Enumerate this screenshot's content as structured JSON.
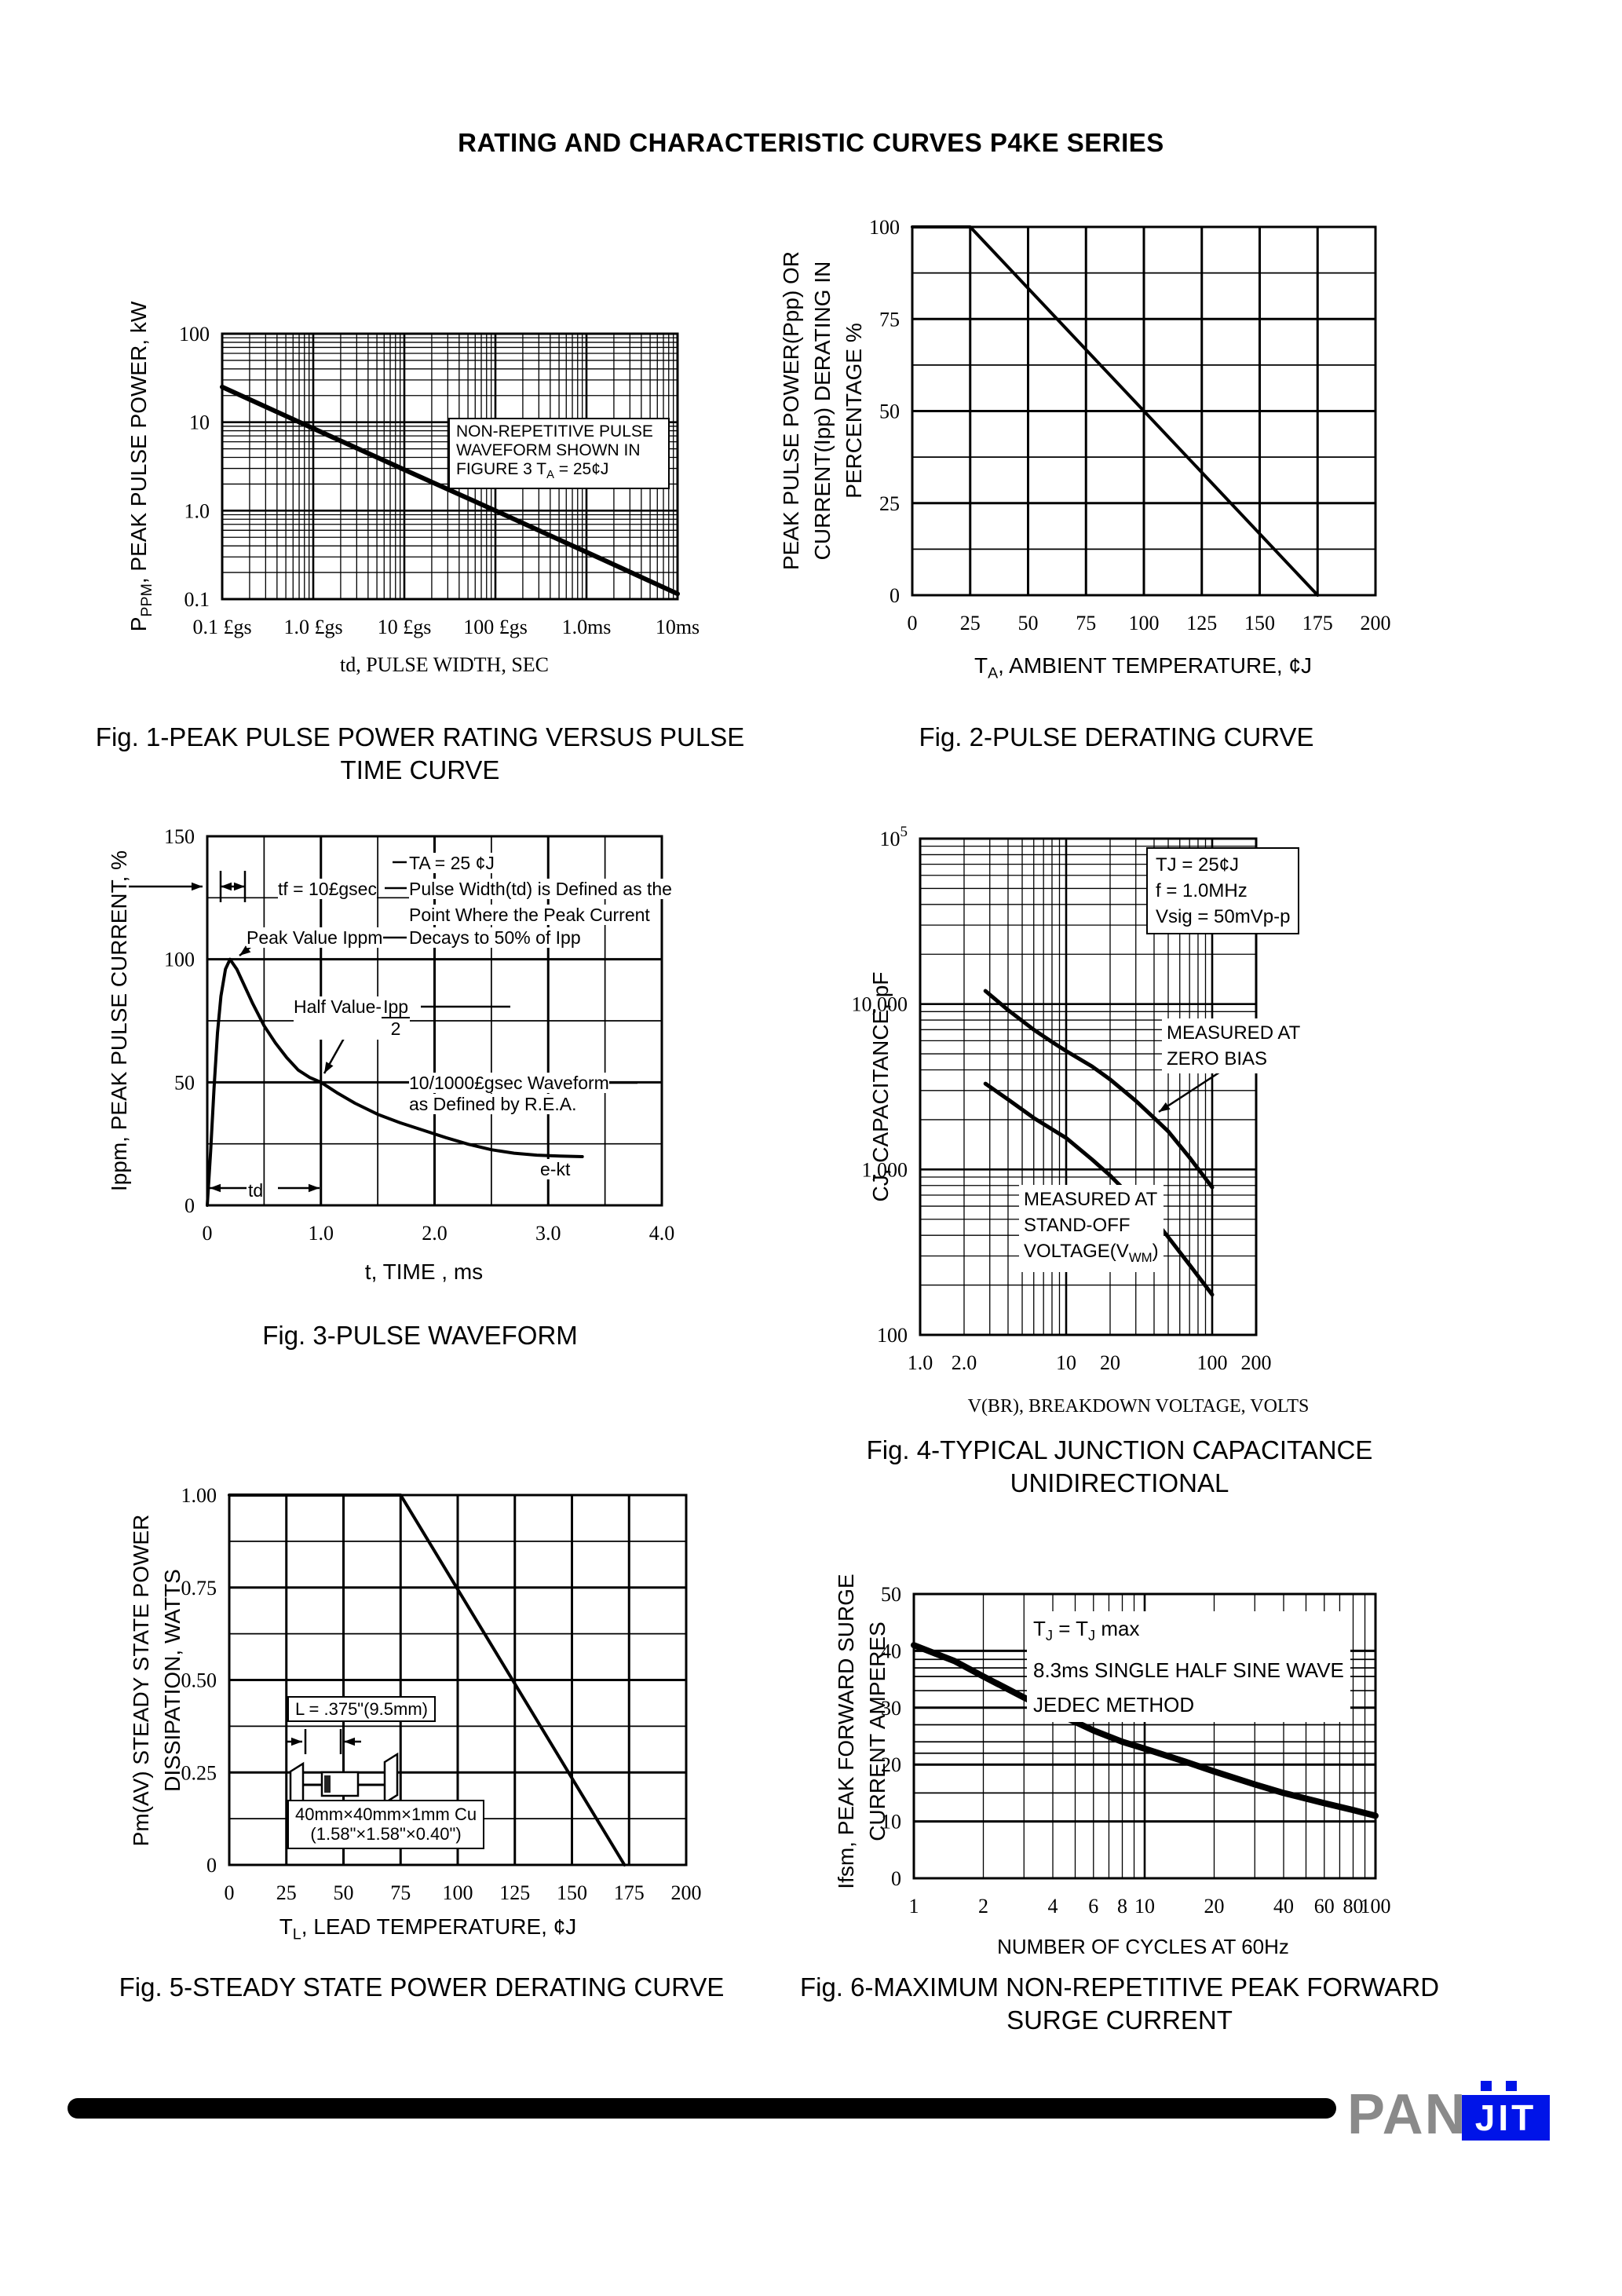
{
  "page": {
    "title": "RATING AND CHARACTERISTIC CURVES P4KE SERIES",
    "footer": {
      "brand_gray": "PAN",
      "brand_blue": "JIT"
    },
    "colors": {
      "accent_blue": "#0014e8",
      "logo_gray": "#8a8a8a",
      "ink": "#000000"
    }
  },
  "figures": {
    "fig1": {
      "caption1": "Fig. 1-PEAK PULSE POWER RATING VERSUS PULSE",
      "caption2": "TIME CURVE",
      "xlabel": "td, PULSE WIDTH, SEC",
      "ylabel_p0": "P",
      "ylabel_s0": "PPM",
      "ylabel_p1": ", PEAK PULSE POWER, kW",
      "note1": "NON-REPETITIVE PULSE",
      "note2": "WAVEFORM SHOWN IN",
      "note3_p0": "FIGURE 3 T",
      "note3_s0": "A",
      "note3_p1": " = 25¢J"
    },
    "fig2": {
      "caption": "Fig. 2-PULSE DERATING CURVE",
      "xlabel_p0": "T",
      "xlabel_s0": "A",
      "xlabel_p1": ", AMBIENT TEMPERATURE, ¢J",
      "ylabel_l1": "PEAK PULSE POWER(Ppp) OR",
      "ylabel_l2": "CURRENT(Ipp) DERATING IN",
      "ylabel_l3": "PERCENTAGE %"
    },
    "fig3": {
      "caption": "Fig. 3-PULSE WAVEFORM",
      "xlabel": "t, TIME , ms",
      "ylabel": "Ippm, PEAK PULSE CURRENT, %",
      "ann_ta": "TA = 25 ¢J",
      "ann_tf": "tf = 10£gsec",
      "ann_pw1": "Pulse Width(td) is Defined as the",
      "ann_pw2": "Point Where the Peak Current",
      "ann_pw3": "Decays to 50% of Ipp",
      "ann_peak": "Peak Value Ippm",
      "ann_half_pre": "Half Value-",
      "ann_half_num": "Ipp",
      "ann_half_den": "2",
      "ann_wave1": "10/1000£gsec Waveform",
      "ann_wave2": "as Defined by R.E.A.",
      "ann_ekt": "e-kt",
      "ann_td": "td"
    },
    "fig4": {
      "caption1": "Fig. 4-TYPICAL JUNCTION CAPACITANCE",
      "caption2": "UNIDIRECTIONAL",
      "xlabel": "V(BR), BREAKDOWN VOLTAGE, VOLTS",
      "ylabel": "CJ, CAPACITANCE, pF",
      "note1": "TJ = 25¢J",
      "note2": "f = 1.0MHz",
      "note3": "Vsig = 50mVp-p",
      "zb1": "MEASURED AT",
      "zb2": "ZERO BIAS",
      "so1": "MEASURED AT",
      "so2": "STAND-OFF",
      "so3_p0": "VOLTAGE(V",
      "so3_s0": "WM",
      "so3_p1": ")"
    },
    "fig5": {
      "caption": "Fig. 5-STEADY STATE POWER DERATING CURVE",
      "xlabel_p0": "T",
      "xlabel_s0": "L",
      "xlabel_p1": ", LEAD TEMPERATURE, ¢J",
      "ylabel_l1": "Pm(AV) STEADY STATE POWER",
      "ylabel_l2": "DISSIPATION, WATTS",
      "ins_l": "L = .375\"(9.5mm)",
      "ins_cu": "40mm×40mm×1mm Cu",
      "ins_in": "(1.58\"×1.58\"×0.40\")"
    },
    "fig6": {
      "caption1": "Fig. 6-MAXIMUM NON-REPETITIVE PEAK FORWARD",
      "caption2": "SURGE CURRENT",
      "xlabel": "NUMBER OF CYCLES AT 60Hz",
      "ylabel_l1": "Ifsm, PEAK FORWARD SURGE",
      "ylabel_l2": "CURRENT AMPERES",
      "ann1_p0": "T",
      "ann1_s0": "J",
      "ann1_p1": " = T",
      "ann1_s1": "J",
      "ann1_p2": " max",
      "ann2": "8.3ms SINGLE HALF SINE WAVE",
      "ann3": "JEDEC METHOD"
    }
  },
  "chart_data": [
    {
      "id": "fig1",
      "type": "line",
      "title": "Fig. 1-PEAK PULSE POWER RATING VERSUS PULSE TIME CURVE",
      "x_axis": {
        "type": "log",
        "min": 1e-07,
        "max": 0.01,
        "label": "td, PULSE WIDTH, SEC",
        "ticks": [
          [
            1e-07,
            "0.1 £gs"
          ],
          [
            1e-06,
            "1.0 £gs"
          ],
          [
            1e-05,
            "10 £gs"
          ],
          [
            0.0001,
            "100 £gs"
          ],
          [
            0.001,
            "1.0ms"
          ],
          [
            0.01,
            "10ms"
          ]
        ]
      },
      "y_axis": {
        "type": "log",
        "min": 0.1,
        "max": 100,
        "label": "PPPM, PEAK PULSE POWER, kW",
        "ticks": [
          [
            100,
            "100"
          ],
          [
            10,
            "10"
          ],
          [
            1,
            "1.0"
          ],
          [
            0.1,
            "0.1"
          ]
        ]
      },
      "series": [
        {
          "name": "non-repetitive peak pulse power",
          "width": 6,
          "points": [
            [
              1e-07,
              25
            ],
            [
              1e-06,
              8.5
            ],
            [
              1e-05,
              2.9
            ],
            [
              0.0001,
              1.0
            ],
            [
              0.001,
              0.34
            ],
            [
              0.01,
              0.115
            ]
          ]
        }
      ]
    },
    {
      "id": "fig2",
      "type": "line",
      "title": "Fig. 2-PULSE DERATING CURVE",
      "x_axis": {
        "type": "linear",
        "min": 0,
        "max": 200,
        "grid_step": 25,
        "thick_step": 25,
        "label": "TA, AMBIENT TEMPERATURE, ¢J",
        "ticks": [
          [
            0,
            "0"
          ],
          [
            25,
            "25"
          ],
          [
            50,
            "50"
          ],
          [
            75,
            "75"
          ],
          [
            100,
            "100"
          ],
          [
            125,
            "125"
          ],
          [
            150,
            "150"
          ],
          [
            175,
            "175"
          ],
          [
            200,
            "200"
          ]
        ]
      },
      "y_axis": {
        "type": "linear",
        "min": 0,
        "max": 100,
        "grid_step": 12.5,
        "thick_step": 25,
        "label": "PEAK PULSE POWER(Ppp) OR CURRENT(Ipp) DERATING IN PERCENTAGE %",
        "ticks": [
          [
            100,
            "100"
          ],
          [
            75,
            "75"
          ],
          [
            50,
            "50"
          ],
          [
            25,
            "25"
          ],
          [
            0,
            "0"
          ]
        ]
      },
      "series": [
        {
          "name": "derating",
          "width": 4,
          "points": [
            [
              0,
              100
            ],
            [
              25,
              100
            ],
            [
              175,
              0
            ]
          ]
        }
      ]
    },
    {
      "id": "fig3",
      "type": "line",
      "title": "Fig. 3-PULSE WAVEFORM",
      "x_axis": {
        "type": "linear",
        "min": 0,
        "max": 4,
        "grid_step": 0.5,
        "thick_step": 1,
        "label": "t, TIME , ms",
        "ticks": [
          [
            0,
            "0"
          ],
          [
            1,
            "1.0"
          ],
          [
            2,
            "2.0"
          ],
          [
            3,
            "3.0"
          ],
          [
            4,
            "4.0"
          ]
        ]
      },
      "y_axis": {
        "type": "linear",
        "min": 0,
        "max": 150,
        "grid_step": 25,
        "thick_step": 50,
        "label": "Ippm, PEAK PULSE CURRENT, %",
        "ticks": [
          [
            150,
            "150"
          ],
          [
            100,
            "100"
          ],
          [
            50,
            "50"
          ],
          [
            0,
            "0"
          ]
        ]
      },
      "series": [
        {
          "name": "10/1000usec pulse waveform",
          "width": 4,
          "points": [
            [
              0,
              0
            ],
            [
              0.03,
              22
            ],
            [
              0.06,
              48
            ],
            [
              0.09,
              70
            ],
            [
              0.12,
              85
            ],
            [
              0.16,
              96
            ],
            [
              0.2,
              100
            ],
            [
              0.26,
              96
            ],
            [
              0.32,
              90
            ],
            [
              0.4,
              82
            ],
            [
              0.5,
              73
            ],
            [
              0.6,
              66
            ],
            [
              0.7,
              60
            ],
            [
              0.8,
              55
            ],
            [
              0.9,
              52
            ],
            [
              1.0,
              50
            ],
            [
              1.15,
              45.5
            ],
            [
              1.3,
              41.5
            ],
            [
              1.5,
              37
            ],
            [
              1.7,
              33.5
            ],
            [
              1.9,
              30.5
            ],
            [
              2.1,
              27.5
            ],
            [
              2.3,
              24.8
            ],
            [
              2.5,
              22.6
            ],
            [
              2.7,
              21.2
            ],
            [
              2.9,
              20.4
            ],
            [
              3.1,
              20
            ],
            [
              3.3,
              19.8
            ]
          ]
        }
      ]
    },
    {
      "id": "fig4",
      "type": "line",
      "title": "Fig. 4-TYPICAL JUNCTION CAPACITANCE UNIDIRECTIONAL",
      "x_axis": {
        "type": "log",
        "min": 1,
        "max": 200,
        "label": "V(BR), BREAKDOWN VOLTAGE, VOLTS",
        "ticks": [
          [
            1,
            "1.0"
          ],
          [
            2,
            "2.0"
          ],
          [
            10,
            "10"
          ],
          [
            20,
            "20"
          ],
          [
            100,
            "100"
          ],
          [
            200,
            "200"
          ]
        ]
      },
      "y_axis": {
        "type": "log",
        "min": 100,
        "max": 100000,
        "label": "CJ, CAPACITANCE, pF",
        "ticks": [
          [
            100000,
            "10^5"
          ],
          [
            10000,
            "10,000"
          ],
          [
            1000,
            "1,000"
          ],
          [
            100,
            "100"
          ]
        ]
      },
      "series": [
        {
          "name": "measured at zero bias",
          "width": 5,
          "points": [
            [
              2.8,
              12000
            ],
            [
              4,
              9200
            ],
            [
              6,
              7000
            ],
            [
              8,
              5900
            ],
            [
              10,
              5200
            ],
            [
              15,
              4200
            ],
            [
              20,
              3500
            ],
            [
              30,
              2600
            ],
            [
              40,
              2050
            ],
            [
              50,
              1700
            ],
            [
              70,
              1180
            ],
            [
              100,
              780
            ]
          ]
        },
        {
          "name": "measured at stand-off voltage (VWM)",
          "width": 5,
          "points": [
            [
              2.8,
              3300
            ],
            [
              4,
              2650
            ],
            [
              6,
              2050
            ],
            [
              8,
              1750
            ],
            [
              10,
              1550
            ],
            [
              15,
              1150
            ],
            [
              20,
              920
            ],
            [
              30,
              640
            ],
            [
              40,
              500
            ],
            [
              50,
              390
            ],
            [
              70,
              265
            ],
            [
              100,
              175
            ]
          ]
        }
      ]
    },
    {
      "id": "fig5",
      "type": "line",
      "title": "Fig. 5-STEADY STATE POWER DERATING CURVE",
      "x_axis": {
        "type": "linear",
        "min": 0,
        "max": 200,
        "grid_step": 25,
        "thick_step": 25,
        "label": "TL, LEAD TEMPERATURE, ¢J",
        "ticks": [
          [
            0,
            "0"
          ],
          [
            25,
            "25"
          ],
          [
            50,
            "50"
          ],
          [
            75,
            "75"
          ],
          [
            100,
            "100"
          ],
          [
            125,
            "125"
          ],
          [
            150,
            "150"
          ],
          [
            175,
            "175"
          ],
          [
            200,
            "200"
          ]
        ]
      },
      "y_axis": {
        "type": "linear",
        "min": 0,
        "max": 1,
        "grid_step": 0.125,
        "thick_step": 0.25,
        "label": "Pm(AV) STEADY STATE POWER DISSIPATION, WATTS",
        "ticks": [
          [
            1,
            "1.00"
          ],
          [
            0.75,
            "0.75"
          ],
          [
            0.5,
            "0.50"
          ],
          [
            0.25,
            "0.25"
          ],
          [
            0,
            "0"
          ]
        ]
      },
      "series": [
        {
          "name": "steady state power derating",
          "width": 4,
          "points": [
            [
              0,
              1
            ],
            [
              75,
              1
            ],
            [
              173,
              0
            ]
          ]
        }
      ]
    },
    {
      "id": "fig6",
      "type": "line",
      "title": "Fig. 6-MAXIMUM NON-REPETITIVE PEAK FORWARD SURGE CURRENT",
      "x_axis": {
        "type": "log",
        "min": 1,
        "max": 100,
        "label": "NUMBER OF CYCLES AT 60Hz",
        "ticks": [
          [
            1,
            "1"
          ],
          [
            2,
            "2"
          ],
          [
            4,
            "4"
          ],
          [
            6,
            "6"
          ],
          [
            8,
            "8"
          ],
          [
            10,
            "10"
          ],
          [
            20,
            "20"
          ],
          [
            40,
            "40"
          ],
          [
            60,
            "60"
          ],
          [
            80,
            "80"
          ],
          [
            100,
            "100"
          ]
        ]
      },
      "y_axis": {
        "type": "linear",
        "min": 0,
        "max": 50,
        "grid_step": 10,
        "thick_step": 10,
        "extra_gridlines": [
          15,
          22,
          24,
          27,
          33,
          35.5,
          37,
          38.5
        ],
        "label": "Ifsm, PEAK FORWARD SURGE CURRENT AMPERES",
        "ticks": [
          [
            50,
            "50"
          ],
          [
            40,
            "40"
          ],
          [
            30,
            "30"
          ],
          [
            20,
            "20"
          ],
          [
            10,
            "10"
          ],
          [
            0,
            "0"
          ]
        ]
      },
      "series": [
        {
          "name": "peak forward surge current",
          "width": 8,
          "points": [
            [
              1,
              41
            ],
            [
              1.5,
              38.2
            ],
            [
              2,
              35.5
            ],
            [
              3,
              31.8
            ],
            [
              4,
              29.3
            ],
            [
              5,
              27.5
            ],
            [
              6,
              26
            ],
            [
              8,
              24
            ],
            [
              10,
              22.8
            ],
            [
              15,
              20.5
            ],
            [
              20,
              18.8
            ],
            [
              30,
              16.5
            ],
            [
              40,
              15
            ],
            [
              60,
              13.2
            ],
            [
              80,
              12
            ],
            [
              100,
              11
            ]
          ]
        }
      ]
    }
  ]
}
